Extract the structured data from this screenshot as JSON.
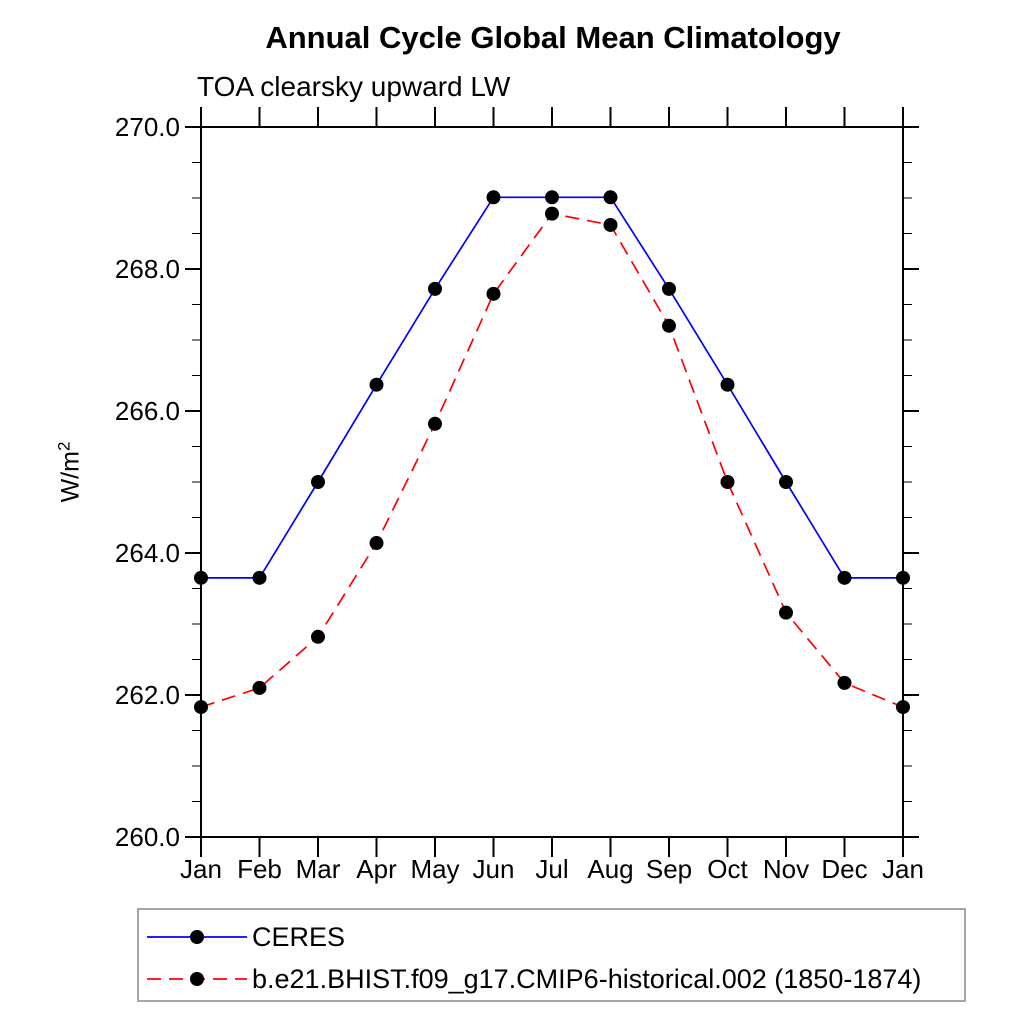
{
  "title": "Annual Cycle Global Mean Climatology",
  "subtitle": "TOA clearsky upward LW",
  "y_axis_label": {
    "base": "W/m",
    "exponent": "2"
  },
  "chart_data": {
    "type": "line",
    "title": "Annual Cycle Global Mean Climatology",
    "subtitle": "TOA clearsky upward LW",
    "xlabel": "",
    "ylabel": "W/m^2",
    "ylim": [
      260.0,
      270.0
    ],
    "y_major_tick_step": 2.0,
    "y_minor_tick_step": 0.5,
    "y_tick_labels": [
      "270.0",
      "268.0",
      "266.0",
      "264.0",
      "262.0",
      "260.0"
    ],
    "categories": [
      "Jan",
      "Feb",
      "Mar",
      "Apr",
      "May",
      "Jun",
      "Jul",
      "Aug",
      "Sep",
      "Oct",
      "Nov",
      "Dec",
      "Jan"
    ],
    "grid": false,
    "legend_position": "bottom-left",
    "series": [
      {
        "name": "CERES",
        "color": "#0000ff",
        "line_style": "solid",
        "marker": "filled-circle",
        "marker_color": "#000000",
        "values": [
          263.65,
          263.65,
          265.0,
          266.37,
          267.72,
          269.01,
          269.01,
          269.01,
          267.72,
          266.37,
          265.0,
          263.65,
          263.65
        ]
      },
      {
        "name": "b.e21.BHIST.f09_g17.CMIP6-historical.002 (1850-1874)",
        "color": "#ff0000",
        "line_style": "dashed",
        "marker": "filled-circle",
        "marker_color": "#000000",
        "values": [
          261.83,
          262.1,
          262.82,
          264.14,
          265.82,
          267.65,
          268.78,
          268.62,
          267.2,
          265.0,
          263.16,
          262.17,
          261.83
        ]
      }
    ]
  },
  "colors": {
    "axis": "#000000",
    "background": "#ffffff",
    "legend_border": "#a6a6a6",
    "ceres_line": "#0000ff",
    "model_line": "#ff0000",
    "marker": "#000000"
  }
}
